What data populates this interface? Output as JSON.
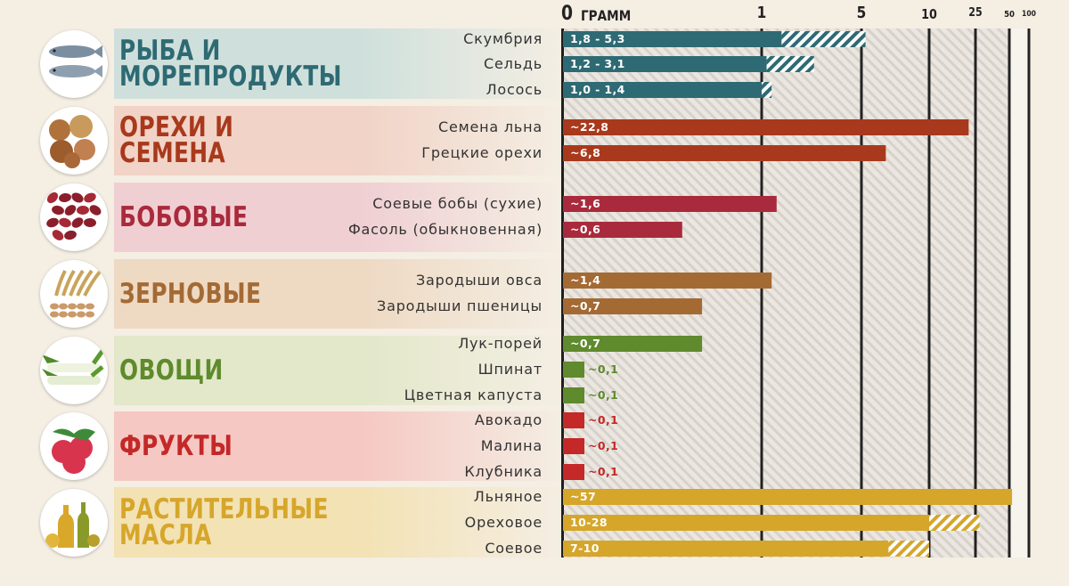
{
  "axis": {
    "unit": "ГРАММ",
    "ticks": [
      {
        "label": "0",
        "value": 0
      },
      {
        "label": "1",
        "value": 1
      },
      {
        "label": "5",
        "value": 5
      },
      {
        "label": "10",
        "value": 10
      },
      {
        "label": "25",
        "value": 25
      },
      {
        "label": "50",
        "value": 50
      },
      {
        "label": "100",
        "value": 100
      }
    ]
  },
  "categories": [
    {
      "title": [
        "РЫБА И",
        "МОРЕПРОДУКТЫ"
      ],
      "icon": "fish-icon",
      "color": "#2e6a73",
      "bg": "#cfe0dc"
    },
    {
      "title": [
        "ОРЕХИ И",
        "СЕМЕНА"
      ],
      "icon": "nuts-icon",
      "color": "#a9391c",
      "bg": "#f1d3c7"
    },
    {
      "title": [
        "БОБОВЫЕ"
      ],
      "icon": "beans-icon",
      "color": "#a92a3c",
      "bg": "#f0cfd3"
    },
    {
      "title": [
        "ЗЕРНОВЫЕ"
      ],
      "icon": "grain-icon",
      "color": "#a46a34",
      "bg": "#eed9c3"
    },
    {
      "title": [
        "ОВОЩИ"
      ],
      "icon": "leek-icon",
      "color": "#5f8a2d",
      "bg": "#e2e8c9"
    },
    {
      "title": [
        "ФРУКТЫ"
      ],
      "icon": "raspberry-icon",
      "color": "#c42828",
      "bg": "#f5c8c3"
    },
    {
      "title": [
        "РАСТИТЕЛЬНЫЕ",
        "МАСЛА"
      ],
      "icon": "oil-bottles-icon",
      "color": "#d6a62b",
      "bg": "#f3e2b4"
    }
  ],
  "chart_data": {
    "type": "bar",
    "orientation": "horizontal",
    "xlabel": "ГРАММ",
    "x_scale": "nonlinear",
    "xlim": [
      0,
      100
    ],
    "items": [
      {
        "category": 0,
        "label": "Скумбрия",
        "text": "1,8 - 5,3",
        "min": 1.8,
        "max": 5.3
      },
      {
        "category": 0,
        "label": "Сельдь",
        "text": "1,2 - 3,1",
        "min": 1.2,
        "max": 3.1
      },
      {
        "category": 0,
        "label": "Лосось",
        "text": "1,0 - 1,4",
        "min": 1.0,
        "max": 1.4
      },
      {
        "category": 1,
        "label": "Семена льна",
        "text": "~22,8",
        "min": 22.8,
        "max": 22.8
      },
      {
        "category": 1,
        "label": "Грецкие орехи",
        "text": "~6,8",
        "min": 6.8,
        "max": 6.8
      },
      {
        "category": 2,
        "label": "Соевые бобы (сухие)",
        "text": "~1,6",
        "min": 1.6,
        "max": 1.6
      },
      {
        "category": 2,
        "label": "Фасоль (обыкновенная)",
        "text": "~0,6",
        "min": 0.6,
        "max": 0.6
      },
      {
        "category": 3,
        "label": "Зародыши овса",
        "text": "~1,4",
        "min": 1.4,
        "max": 1.4
      },
      {
        "category": 3,
        "label": "Зародыши пшеницы",
        "text": "~0,7",
        "min": 0.7,
        "max": 0.7
      },
      {
        "category": 4,
        "label": "Лук-порей",
        "text": "~0,7",
        "min": 0.7,
        "max": 0.7
      },
      {
        "category": 4,
        "label": "Шпинат",
        "text": "~0,1",
        "min": 0.1,
        "max": 0.1
      },
      {
        "category": 4,
        "label": "Цветная капуста",
        "text": "~0,1",
        "min": 0.1,
        "max": 0.1
      },
      {
        "category": 5,
        "label": "Авокадо",
        "text": "~0,1",
        "min": 0.1,
        "max": 0.1
      },
      {
        "category": 5,
        "label": "Малина",
        "text": "~0,1",
        "min": 0.1,
        "max": 0.1
      },
      {
        "category": 5,
        "label": "Клубника",
        "text": "~0,1",
        "min": 0.1,
        "max": 0.1
      },
      {
        "category": 6,
        "label": "Льняное",
        "text": "~57",
        "min": 57,
        "max": 57
      },
      {
        "category": 6,
        "label": "Ореховое",
        "text": "10-28",
        "min": 10,
        "max": 28
      },
      {
        "category": 6,
        "label": "Соевое",
        "text": "7-10",
        "min": 7,
        "max": 10
      }
    ]
  }
}
